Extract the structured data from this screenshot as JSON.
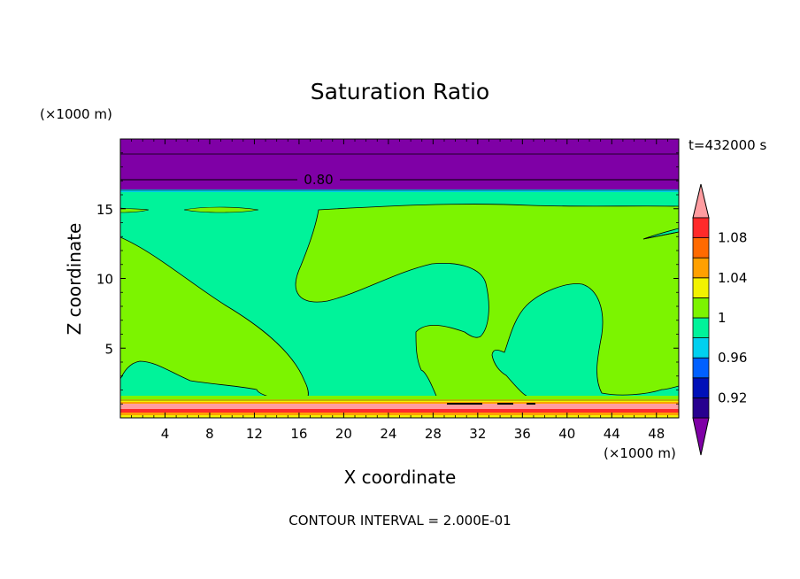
{
  "chart_data": {
    "type": "heatmap",
    "title": "Saturation Ratio",
    "xlabel": "X coordinate",
    "ylabel": "Z coordinate",
    "x_unit": "(×1000 m)",
    "z_unit": "(×1000 m)",
    "time_label": "t=432000 s",
    "footer": "CONTOUR INTERVAL = 2.000E-01",
    "contour_label": "0.80",
    "xlim": [
      0,
      50
    ],
    "ylim": [
      0,
      20
    ],
    "x_ticks": [
      4,
      8,
      12,
      16,
      20,
      24,
      28,
      32,
      36,
      40,
      44,
      48
    ],
    "y_ticks": [
      5,
      10,
      15
    ],
    "colorbar": {
      "colors": [
        "#7f00a6",
        "#27008f",
        "#0010b8",
        "#0060ff",
        "#00d0f0",
        "#00f39a",
        "#7cf400",
        "#f2f200",
        "#ffa000",
        "#ff6a00",
        "#ff2a2a",
        "#ff9ca0"
      ],
      "tick_labels": [
        "0.92",
        "0.96",
        "1",
        "1.04",
        "1.08"
      ]
    }
  }
}
